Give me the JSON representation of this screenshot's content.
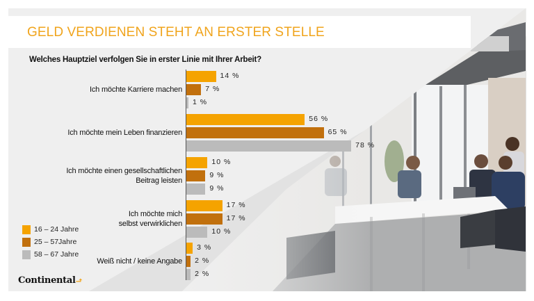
{
  "header": {
    "title": "GELD VERDIENEN STEHT AN ERSTER STELLE",
    "question": "Welches Hauptziel verfolgen Sie in erster Linie mit Ihrer Arbeit?"
  },
  "brand": {
    "logo_text": "Continental",
    "logo_icon": "horse-icon"
  },
  "photo": {
    "description": "office meeting photo",
    "icon": "photo-office-meeting"
  },
  "colors": {
    "accent": "#f0a41c",
    "series_16_24": "#f5a300",
    "series_25_57": "#c1700d",
    "series_58_67": "#bbbbbb",
    "panel": "#efefef"
  },
  "chart_data": {
    "type": "bar",
    "orientation": "horizontal",
    "title": "GELD VERDIENEN STEHT AN ERSTER STELLE",
    "subtitle": "Welches Hauptziel verfolgen Sie in erster Linie mit Ihrer Arbeit?",
    "xlabel": "",
    "ylabel": "",
    "unit": "%",
    "xlim": [
      0,
      100
    ],
    "grid": false,
    "legend_position": "bottom-left",
    "categories": [
      "Ich möchte Karriere machen",
      "Ich möchte mein Leben finanzieren",
      "Ich möchte einen gesellschaftlichen Beitrag leisten",
      "Ich möchte mich selbst verwirklichen",
      "Weiß nicht / keine Angabe"
    ],
    "category_lines": [
      [
        "Ich möchte Karriere machen"
      ],
      [
        "Ich möchte mein Leben finanzieren"
      ],
      [
        "Ich möchte einen gesellschaftlichen",
        "Beitrag leisten"
      ],
      [
        "Ich möchte mich",
        "selbst verwirklichen"
      ],
      [
        "Weiß nicht / keine Angabe"
      ]
    ],
    "series": [
      {
        "name": "16 – 24 Jahre",
        "color": "#f5a300",
        "values": [
          14,
          56,
          10,
          17,
          3
        ]
      },
      {
        "name": "25 – 57Jahre",
        "color": "#c1700d",
        "values": [
          7,
          65,
          9,
          17,
          2
        ]
      },
      {
        "name": "58 – 67 Jahre",
        "color": "#bbbbbb",
        "values": [
          1,
          78,
          9,
          10,
          2
        ]
      }
    ],
    "data_labels": [
      [
        "14 %",
        "56 %",
        "10 %",
        "17 %",
        "3 %"
      ],
      [
        "7 %",
        "65 %",
        "9 %",
        "17 %",
        "2 %"
      ],
      [
        "1 %",
        "78 %",
        "9 %",
        "10 %",
        "2 %"
      ]
    ]
  }
}
